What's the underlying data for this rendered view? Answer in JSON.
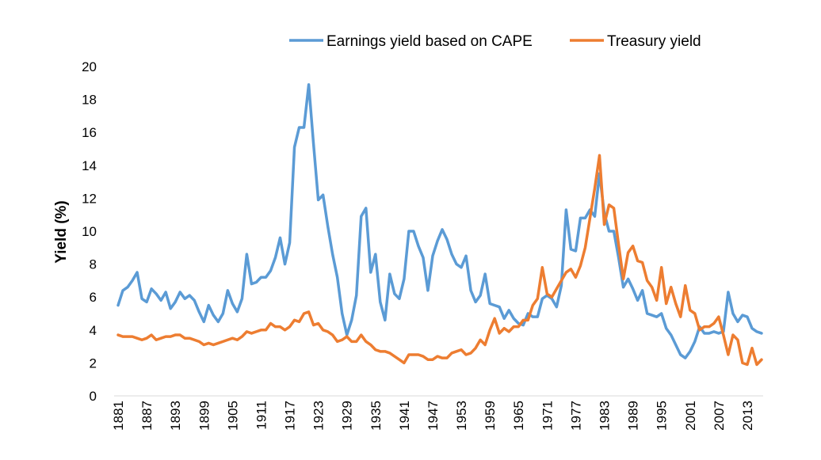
{
  "chart_data": {
    "type": "line",
    "title": "",
    "xlabel": "",
    "ylabel": "Yield (%)",
    "ylim": [
      0,
      20
    ],
    "yticks": [
      "0",
      "2",
      "4",
      "6",
      "8",
      "10",
      "12",
      "14",
      "16",
      "18",
      "20"
    ],
    "xlim": [
      1881,
      2016
    ],
    "xticks": [
      "1881",
      "1887",
      "1893",
      "1899",
      "1905",
      "1911",
      "1917",
      "1923",
      "1929",
      "1935",
      "1941",
      "1947",
      "1953",
      "1959",
      "1965",
      "1971",
      "1977",
      "1983",
      "1989",
      "1995",
      "2001",
      "2007",
      "2013"
    ],
    "grid": false,
    "legend_position": "top",
    "series": [
      {
        "name": "Earnings yield based on CAPE",
        "color": "#5B9BD5",
        "points": [
          [
            1881,
            5.5
          ],
          [
            1882,
            6.4
          ],
          [
            1883,
            6.6
          ],
          [
            1884,
            7.0
          ],
          [
            1885,
            7.5
          ],
          [
            1886,
            5.9
          ],
          [
            1887,
            5.7
          ],
          [
            1888,
            6.5
          ],
          [
            1889,
            6.2
          ],
          [
            1890,
            5.8
          ],
          [
            1891,
            6.3
          ],
          [
            1892,
            5.3
          ],
          [
            1893,
            5.7
          ],
          [
            1894,
            6.3
          ],
          [
            1895,
            5.9
          ],
          [
            1896,
            6.1
          ],
          [
            1897,
            5.8
          ],
          [
            1898,
            5.1
          ],
          [
            1899,
            4.5
          ],
          [
            1900,
            5.5
          ],
          [
            1901,
            4.9
          ],
          [
            1902,
            4.5
          ],
          [
            1903,
            5.0
          ],
          [
            1904,
            6.4
          ],
          [
            1905,
            5.6
          ],
          [
            1906,
            5.1
          ],
          [
            1907,
            5.9
          ],
          [
            1908,
            8.6
          ],
          [
            1909,
            6.8
          ],
          [
            1910,
            6.9
          ],
          [
            1911,
            7.2
          ],
          [
            1912,
            7.2
          ],
          [
            1913,
            7.6
          ],
          [
            1914,
            8.4
          ],
          [
            1915,
            9.6
          ],
          [
            1916,
            8.0
          ],
          [
            1917,
            9.3
          ],
          [
            1918,
            15.1
          ],
          [
            1919,
            16.3
          ],
          [
            1920,
            16.3
          ],
          [
            1921,
            18.9
          ],
          [
            1922,
            15.3
          ],
          [
            1923,
            11.9
          ],
          [
            1924,
            12.2
          ],
          [
            1925,
            10.3
          ],
          [
            1926,
            8.6
          ],
          [
            1927,
            7.2
          ],
          [
            1928,
            5.0
          ],
          [
            1929,
            3.7
          ],
          [
            1930,
            4.6
          ],
          [
            1931,
            6.1
          ],
          [
            1932,
            10.9
          ],
          [
            1933,
            11.4
          ],
          [
            1934,
            7.5
          ],
          [
            1935,
            8.6
          ],
          [
            1936,
            5.7
          ],
          [
            1937,
            4.6
          ],
          [
            1938,
            7.4
          ],
          [
            1939,
            6.2
          ],
          [
            1940,
            5.9
          ],
          [
            1941,
            7.1
          ],
          [
            1942,
            10.0
          ],
          [
            1943,
            10.0
          ],
          [
            1944,
            9.1
          ],
          [
            1945,
            8.4
          ],
          [
            1946,
            6.4
          ],
          [
            1947,
            8.5
          ],
          [
            1948,
            9.4
          ],
          [
            1949,
            10.1
          ],
          [
            1950,
            9.5
          ],
          [
            1951,
            8.6
          ],
          [
            1952,
            8.0
          ],
          [
            1953,
            7.8
          ],
          [
            1954,
            8.5
          ],
          [
            1955,
            6.4
          ],
          [
            1956,
            5.7
          ],
          [
            1957,
            6.1
          ],
          [
            1958,
            7.4
          ],
          [
            1959,
            5.6
          ],
          [
            1960,
            5.5
          ],
          [
            1961,
            5.4
          ],
          [
            1962,
            4.7
          ],
          [
            1963,
            5.2
          ],
          [
            1964,
            4.7
          ],
          [
            1965,
            4.4
          ],
          [
            1966,
            4.3
          ],
          [
            1967,
            5.0
          ],
          [
            1968,
            4.8
          ],
          [
            1969,
            4.8
          ],
          [
            1970,
            5.9
          ],
          [
            1971,
            6.1
          ],
          [
            1972,
            5.9
          ],
          [
            1973,
            5.4
          ],
          [
            1974,
            6.7
          ],
          [
            1975,
            11.3
          ],
          [
            1976,
            8.9
          ],
          [
            1977,
            8.8
          ],
          [
            1978,
            10.8
          ],
          [
            1979,
            10.8
          ],
          [
            1980,
            11.3
          ],
          [
            1981,
            10.9
          ],
          [
            1982,
            13.5
          ],
          [
            1983,
            11.1
          ],
          [
            1984,
            10.0
          ],
          [
            1985,
            10.0
          ],
          [
            1986,
            8.4
          ],
          [
            1987,
            6.6
          ],
          [
            1988,
            7.1
          ],
          [
            1989,
            6.5
          ],
          [
            1990,
            5.8
          ],
          [
            1991,
            6.4
          ],
          [
            1992,
            5.0
          ],
          [
            1993,
            4.9
          ],
          [
            1994,
            4.8
          ],
          [
            1995,
            5.0
          ],
          [
            1996,
            4.1
          ],
          [
            1997,
            3.7
          ],
          [
            1998,
            3.1
          ],
          [
            1999,
            2.5
          ],
          [
            2000,
            2.3
          ],
          [
            2001,
            2.7
          ],
          [
            2002,
            3.3
          ],
          [
            2003,
            4.2
          ],
          [
            2004,
            3.8
          ],
          [
            2005,
            3.8
          ],
          [
            2006,
            3.9
          ],
          [
            2007,
            3.8
          ],
          [
            2008,
            3.9
          ],
          [
            2009,
            6.3
          ],
          [
            2010,
            5.0
          ],
          [
            2011,
            4.5
          ],
          [
            2012,
            4.9
          ],
          [
            2013,
            4.8
          ],
          [
            2014,
            4.1
          ],
          [
            2015,
            3.9
          ],
          [
            2016,
            3.8
          ]
        ]
      },
      {
        "name": "Treasury yield",
        "color": "#ED7D31",
        "points": [
          [
            1881,
            3.7
          ],
          [
            1882,
            3.6
          ],
          [
            1883,
            3.6
          ],
          [
            1884,
            3.6
          ],
          [
            1885,
            3.5
          ],
          [
            1886,
            3.4
          ],
          [
            1887,
            3.5
          ],
          [
            1888,
            3.7
          ],
          [
            1889,
            3.4
          ],
          [
            1890,
            3.5
          ],
          [
            1891,
            3.6
          ],
          [
            1892,
            3.6
          ],
          [
            1893,
            3.7
          ],
          [
            1894,
            3.7
          ],
          [
            1895,
            3.5
          ],
          [
            1896,
            3.5
          ],
          [
            1897,
            3.4
          ],
          [
            1898,
            3.3
          ],
          [
            1899,
            3.1
          ],
          [
            1900,
            3.2
          ],
          [
            1901,
            3.1
          ],
          [
            1902,
            3.2
          ],
          [
            1903,
            3.3
          ],
          [
            1904,
            3.4
          ],
          [
            1905,
            3.5
          ],
          [
            1906,
            3.4
          ],
          [
            1907,
            3.6
          ],
          [
            1908,
            3.9
          ],
          [
            1909,
            3.8
          ],
          [
            1910,
            3.9
          ],
          [
            1911,
            4.0
          ],
          [
            1912,
            4.0
          ],
          [
            1913,
            4.4
          ],
          [
            1914,
            4.2
          ],
          [
            1915,
            4.2
          ],
          [
            1916,
            4.0
          ],
          [
            1917,
            4.2
          ],
          [
            1918,
            4.6
          ],
          [
            1919,
            4.5
          ],
          [
            1920,
            5.0
          ],
          [
            1921,
            5.1
          ],
          [
            1922,
            4.3
          ],
          [
            1923,
            4.4
          ],
          [
            1924,
            4.0
          ],
          [
            1925,
            3.9
          ],
          [
            1926,
            3.7
          ],
          [
            1927,
            3.3
          ],
          [
            1928,
            3.4
          ],
          [
            1929,
            3.6
          ],
          [
            1930,
            3.3
          ],
          [
            1931,
            3.3
          ],
          [
            1932,
            3.7
          ],
          [
            1933,
            3.3
          ],
          [
            1934,
            3.1
          ],
          [
            1935,
            2.8
          ],
          [
            1936,
            2.7
          ],
          [
            1937,
            2.7
          ],
          [
            1938,
            2.6
          ],
          [
            1939,
            2.4
          ],
          [
            1940,
            2.2
          ],
          [
            1941,
            2.0
          ],
          [
            1942,
            2.5
          ],
          [
            1943,
            2.5
          ],
          [
            1944,
            2.5
          ],
          [
            1945,
            2.4
          ],
          [
            1946,
            2.2
          ],
          [
            1947,
            2.2
          ],
          [
            1948,
            2.4
          ],
          [
            1949,
            2.3
          ],
          [
            1950,
            2.3
          ],
          [
            1951,
            2.6
          ],
          [
            1952,
            2.7
          ],
          [
            1953,
            2.8
          ],
          [
            1954,
            2.5
          ],
          [
            1955,
            2.6
          ],
          [
            1956,
            2.9
          ],
          [
            1957,
            3.4
          ],
          [
            1958,
            3.1
          ],
          [
            1959,
            4.0
          ],
          [
            1960,
            4.7
          ],
          [
            1961,
            3.8
          ],
          [
            1962,
            4.1
          ],
          [
            1963,
            3.9
          ],
          [
            1964,
            4.2
          ],
          [
            1965,
            4.2
          ],
          [
            1966,
            4.6
          ],
          [
            1967,
            4.6
          ],
          [
            1968,
            5.5
          ],
          [
            1969,
            5.9
          ],
          [
            1970,
            7.8
          ],
          [
            1971,
            6.2
          ],
          [
            1972,
            6.0
          ],
          [
            1973,
            6.5
          ],
          [
            1974,
            7.0
          ],
          [
            1975,
            7.5
          ],
          [
            1976,
            7.7
          ],
          [
            1977,
            7.2
          ],
          [
            1978,
            7.9
          ],
          [
            1979,
            9.0
          ],
          [
            1980,
            10.8
          ],
          [
            1981,
            12.6
          ],
          [
            1982,
            14.6
          ],
          [
            1983,
            10.4
          ],
          [
            1984,
            11.6
          ],
          [
            1985,
            11.4
          ],
          [
            1986,
            9.2
          ],
          [
            1987,
            7.1
          ],
          [
            1988,
            8.7
          ],
          [
            1989,
            9.1
          ],
          [
            1990,
            8.2
          ],
          [
            1991,
            8.1
          ],
          [
            1992,
            7.0
          ],
          [
            1993,
            6.6
          ],
          [
            1994,
            5.8
          ],
          [
            1995,
            7.8
          ],
          [
            1996,
            5.6
          ],
          [
            1997,
            6.6
          ],
          [
            1998,
            5.6
          ],
          [
            1999,
            4.8
          ],
          [
            2000,
            6.7
          ],
          [
            2001,
            5.2
          ],
          [
            2002,
            5.0
          ],
          [
            2003,
            4.0
          ],
          [
            2004,
            4.2
          ],
          [
            2005,
            4.2
          ],
          [
            2006,
            4.4
          ],
          [
            2007,
            4.8
          ],
          [
            2008,
            3.7
          ],
          [
            2009,
            2.5
          ],
          [
            2010,
            3.7
          ],
          [
            2011,
            3.4
          ],
          [
            2012,
            2.0
          ],
          [
            2013,
            1.9
          ],
          [
            2014,
            2.9
          ],
          [
            2015,
            1.9
          ],
          [
            2016,
            2.2
          ]
        ]
      }
    ]
  }
}
